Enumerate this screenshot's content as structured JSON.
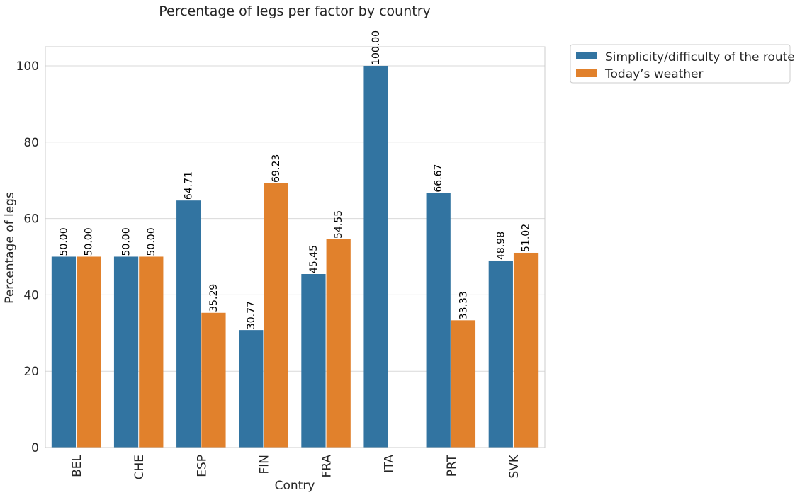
{
  "chart_data": {
    "type": "bar",
    "title": "Percentage of legs per factor by country",
    "xlabel": "Contry",
    "ylabel": "Percentage of legs",
    "ylim": [
      0,
      105
    ],
    "yticks": [
      0,
      20,
      40,
      60,
      80,
      100
    ],
    "categories": [
      "BEL",
      "CHE",
      "ESP",
      "FIN",
      "FRA",
      "ITA",
      "PRT",
      "SVK"
    ],
    "series": [
      {
        "name": "Simplicity/difficulty of the route",
        "color": "#3274a1",
        "values": [
          50.0,
          50.0,
          64.71,
          30.77,
          45.45,
          100.0,
          66.67,
          48.98
        ],
        "labels": [
          "50.00",
          "50.00",
          "64.71",
          "30.77",
          "45.45",
          "100.00",
          "66.67",
          "48.98"
        ]
      },
      {
        "name": "Today’s weather",
        "color": "#e1812c",
        "values": [
          50.0,
          50.0,
          35.29,
          69.23,
          54.55,
          null,
          33.33,
          51.02
        ],
        "labels": [
          "50.00",
          "50.00",
          "35.29",
          "69.23",
          "54.55",
          "",
          "33.33",
          "51.02"
        ]
      }
    ],
    "grid": true,
    "legend_position": "outside-top-right"
  }
}
